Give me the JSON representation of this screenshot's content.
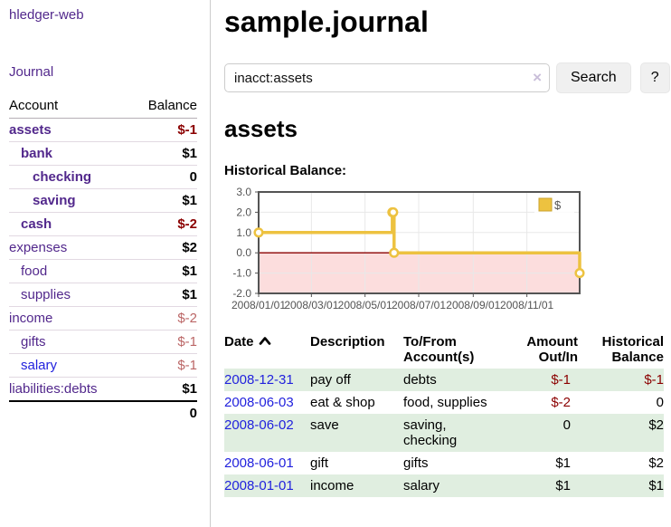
{
  "app": {
    "title": "hledger-web"
  },
  "sidebar": {
    "journal_label": "Journal",
    "accounts_table": {
      "headers": {
        "account": "Account",
        "balance": "Balance"
      },
      "rows": [
        {
          "name": "assets",
          "indent": 0,
          "bold": true,
          "balance": "$-1",
          "balance_style": "neg-strong",
          "link_style": "purple"
        },
        {
          "name": "bank",
          "indent": 1,
          "bold": true,
          "balance": "$1",
          "balance_style": "pos",
          "link_style": "purple"
        },
        {
          "name": "checking",
          "indent": 2,
          "bold": true,
          "balance": "0",
          "balance_style": "pos",
          "link_style": "purple"
        },
        {
          "name": "saving",
          "indent": 2,
          "bold": true,
          "balance": "$1",
          "balance_style": "pos",
          "link_style": "purple"
        },
        {
          "name": "cash",
          "indent": 1,
          "bold": true,
          "balance": "$-2",
          "balance_style": "neg-strong",
          "link_style": "purple"
        },
        {
          "name": "expenses",
          "indent": 0,
          "bold": false,
          "balance": "$2",
          "balance_style": "pos",
          "link_style": "purple"
        },
        {
          "name": "food",
          "indent": 1,
          "bold": false,
          "balance": "$1",
          "balance_style": "pos",
          "link_style": "purple"
        },
        {
          "name": "supplies",
          "indent": 1,
          "bold": false,
          "balance": "$1",
          "balance_style": "pos",
          "link_style": "purple"
        },
        {
          "name": "income",
          "indent": 0,
          "bold": false,
          "balance": "$-2",
          "balance_style": "neg-soft",
          "link_style": "purple"
        },
        {
          "name": "gifts",
          "indent": 1,
          "bold": false,
          "balance": "$-1",
          "balance_style": "neg-soft",
          "link_style": "purple"
        },
        {
          "name": "salary",
          "indent": 1,
          "bold": false,
          "balance": "$-1",
          "balance_style": "neg-soft",
          "link_style": "blue"
        },
        {
          "name": "liabilities:debts",
          "indent": 0,
          "bold": false,
          "balance": "$1",
          "balance_style": "pos",
          "link_style": "purple"
        }
      ],
      "total": "0"
    }
  },
  "header": {
    "title": "sample.journal"
  },
  "search": {
    "value": "inacct:assets",
    "clear_icon": "×",
    "button_label": "Search",
    "help_label": "?"
  },
  "account_page": {
    "heading": "assets",
    "chart_label": "Historical Balance:"
  },
  "chart_data": {
    "type": "line",
    "title": "Historical Balance",
    "step": true,
    "series": [
      {
        "name": "$",
        "color": "#edc240",
        "points": [
          [
            "2008-01-01",
            1
          ],
          [
            "2008-06-01",
            2
          ],
          [
            "2008-06-02",
            2
          ],
          [
            "2008-06-03",
            0
          ],
          [
            "2008-12-31",
            -1
          ]
        ]
      }
    ],
    "x_ticks": [
      "2008/01/01",
      "2008/03/01",
      "2008/05/01",
      "2008/07/01",
      "2008/09/01",
      "2008/11/01"
    ],
    "y_ticks": [
      3.0,
      2.0,
      1.0,
      0.0,
      -1.0,
      -2.0
    ],
    "ylim": [
      -2,
      3
    ],
    "xlim_days": [
      "2008-01-01",
      "2008-12-31"
    ],
    "xlabel": "",
    "ylabel": "",
    "grid": true,
    "legend_position": "top-right",
    "legend": {
      "label": "$",
      "swatch_color": "#edc240"
    },
    "negative_fill": "#fcdddd",
    "zero_line_color": "#8b0000",
    "frame_color": "#545454",
    "grid_color": "#e8e8e8",
    "tick_label_color": "#545454"
  },
  "register": {
    "columns": {
      "date": "Date",
      "description": "Description",
      "accounts": "To/From Account(s)",
      "amount": "Amount Out/In",
      "balance": "Historical Balance"
    },
    "rows": [
      {
        "date": "2008-12-31",
        "description": "pay off",
        "accounts": "debts",
        "amount": "$-1",
        "amount_neg": true,
        "balance": "$-1",
        "balance_neg": true
      },
      {
        "date": "2008-06-03",
        "description": "eat & shop",
        "accounts": "food, supplies",
        "amount": "$-2",
        "amount_neg": true,
        "balance": "0",
        "balance_neg": false
      },
      {
        "date": "2008-06-02",
        "description": "save",
        "accounts": "saving, checking",
        "amount": "0",
        "amount_neg": false,
        "balance": "$2",
        "balance_neg": false
      },
      {
        "date": "2008-06-01",
        "description": "gift",
        "accounts": "gifts",
        "amount": "$1",
        "amount_neg": false,
        "balance": "$2",
        "balance_neg": false
      },
      {
        "date": "2008-01-01",
        "description": "income",
        "accounts": "salary",
        "amount": "$1",
        "amount_neg": false,
        "balance": "$1",
        "balance_neg": false
      }
    ]
  }
}
